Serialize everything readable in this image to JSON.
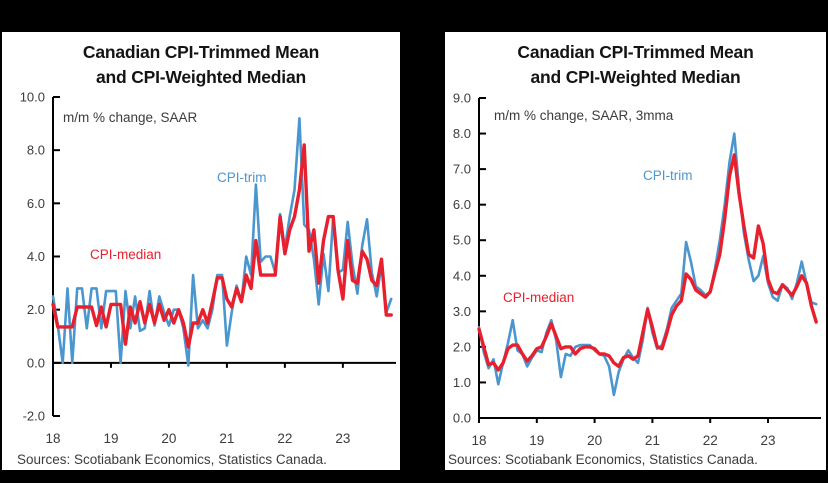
{
  "colors": {
    "cpi_trim_blue": "#4a96ce",
    "cpi_median_red": "#e8202e",
    "background": "#000000",
    "panel": "#ffffff",
    "axis": "#000000",
    "tick_label": "#3c3c3c",
    "title": "#141414"
  },
  "panels": [
    {
      "title_line1": "Canadian CPI-Trimmed Mean",
      "title_line2": "and CPI-Weighted Median",
      "annotation": "m/m % change, SAAR",
      "labels": {
        "trim": "CPI-trim",
        "median": "CPI-median"
      },
      "sources": "Sources: Scotiabank Economics, Statistics Canada."
    },
    {
      "title_line1": "Canadian CPI-Trimmed Mean",
      "title_line2": "and CPI-Weighted Median",
      "annotation": "m/m % change, SAAR, 3mma",
      "labels": {
        "trim": "CPI-trim",
        "median": "CPI-median"
      },
      "sources": "Sources: Scotiabank Economics, Statistics Canada."
    }
  ],
  "chart_data": [
    {
      "type": "line",
      "title": "Canadian CPI-Trimmed Mean and CPI-Weighted Median",
      "subtitle": "m/m % change, SAAR",
      "x_start": "2018-01",
      "x_frequency": "monthly",
      "xticklabels": [
        "18",
        "19",
        "20",
        "21",
        "22",
        "23"
      ],
      "ylim": [
        -2,
        10
      ],
      "ytick_step": 2,
      "yticklabels": [
        "-2.0",
        "0.0",
        "2.0",
        "4.0",
        "6.0",
        "8.0",
        "10.0"
      ],
      "grid": false,
      "series": [
        {
          "name": "CPI-trim",
          "color": "#4a96ce",
          "values": [
            2.5,
            1.4,
            0.0,
            2.8,
            0.0,
            2.8,
            2.8,
            1.3,
            2.8,
            2.8,
            1.3,
            2.7,
            2.7,
            2.7,
            0.0,
            2.7,
            1.3,
            2.5,
            1.2,
            1.3,
            2.7,
            1.4,
            2.5,
            1.9,
            1.4,
            2.0,
            2.0,
            1.3,
            -0.1,
            3.3,
            1.3,
            1.6,
            1.3,
            2.0,
            3.3,
            3.3,
            0.65,
            1.9,
            2.9,
            2.3,
            4.0,
            3.3,
            6.7,
            3.8,
            4.0,
            4.0,
            3.4,
            5.6,
            4.3,
            5.5,
            6.5,
            9.2,
            5.2,
            5.0,
            3.9,
            2.2,
            4.1,
            2.7,
            5.5,
            3.4,
            3.5,
            5.3,
            3.7,
            2.6,
            4.4,
            5.4,
            3.4,
            2.5,
            3.7,
            1.9,
            2.4
          ]
        },
        {
          "name": "CPI-median",
          "color": "#e8202e",
          "values": [
            2.2,
            1.35,
            1.35,
            1.35,
            1.35,
            2.1,
            2.1,
            2.1,
            2.1,
            1.4,
            2.1,
            1.35,
            2.2,
            2.2,
            2.2,
            0.7,
            2.1,
            1.5,
            2.3,
            1.5,
            2.2,
            1.5,
            2.2,
            1.6,
            2.0,
            1.5,
            2.0,
            1.5,
            0.6,
            1.5,
            1.5,
            2.0,
            1.5,
            2.3,
            3.2,
            3.2,
            2.4,
            2.1,
            2.8,
            2.3,
            3.3,
            2.8,
            4.6,
            3.3,
            3.3,
            3.3,
            3.3,
            5.5,
            4.1,
            5.0,
            5.5,
            6.5,
            8.2,
            4.2,
            5.0,
            3.0,
            4.6,
            5.5,
            5.5,
            3.5,
            2.4,
            4.6,
            3.1,
            3.0,
            4.2,
            3.9,
            3.1,
            2.9,
            3.9,
            1.8,
            1.8
          ]
        }
      ]
    },
    {
      "type": "line",
      "title": "Canadian CPI-Trimmed Mean and CPI-Weighted Median",
      "subtitle": "m/m % change, SAAR, 3mma",
      "x_start": "2018-01",
      "x_frequency": "monthly",
      "xticklabels": [
        "18",
        "19",
        "20",
        "21",
        "22",
        "23"
      ],
      "ylim": [
        0,
        9
      ],
      "ytick_step": 1,
      "yticklabels": [
        "0.0",
        "1.0",
        "2.0",
        "3.0",
        "4.0",
        "5.0",
        "6.0",
        "7.0",
        "8.0",
        "9.0"
      ],
      "grid": false,
      "series": [
        {
          "name": "CPI-trim",
          "color": "#4a96ce",
          "values": [
            2.55,
            1.85,
            1.4,
            1.65,
            0.95,
            1.55,
            2.1,
            2.75,
            1.9,
            1.8,
            1.45,
            1.7,
            1.9,
            1.85,
            2.4,
            2.75,
            2.2,
            1.15,
            1.8,
            1.75,
            2.0,
            2.05,
            2.05,
            2.05,
            1.9,
            1.8,
            1.75,
            1.45,
            0.65,
            1.3,
            1.65,
            1.9,
            1.7,
            1.55,
            2.2,
            3.1,
            2.4,
            1.95,
            2.05,
            2.5,
            3.1,
            3.3,
            3.5,
            4.95,
            4.4,
            3.7,
            3.6,
            3.45,
            3.55,
            4.2,
            5.0,
            6.0,
            7.2,
            8.0,
            6.4,
            5.2,
            4.45,
            3.85,
            4.0,
            4.55,
            3.8,
            3.4,
            3.3,
            3.75,
            3.65,
            3.35,
            3.8,
            4.4,
            3.8,
            3.25,
            3.2
          ]
        },
        {
          "name": "CPI-median",
          "color": "#e8202e",
          "values": [
            2.5,
            2.0,
            1.5,
            1.55,
            1.35,
            1.55,
            1.95,
            2.05,
            2.05,
            1.8,
            1.6,
            1.75,
            1.95,
            2.0,
            2.3,
            2.65,
            2.3,
            1.95,
            2.0,
            2.0,
            1.8,
            1.95,
            2.0,
            2.0,
            1.95,
            1.8,
            1.8,
            1.75,
            1.55,
            1.45,
            1.7,
            1.75,
            1.65,
            1.75,
            2.4,
            3.05,
            2.55,
            2.0,
            1.95,
            2.4,
            2.9,
            3.15,
            3.3,
            4.05,
            3.9,
            3.6,
            3.5,
            3.4,
            3.55,
            4.1,
            4.6,
            5.6,
            6.8,
            7.4,
            6.3,
            5.4,
            4.6,
            4.5,
            5.4,
            4.9,
            3.9,
            3.55,
            3.5,
            3.75,
            3.6,
            3.45,
            3.7,
            4.0,
            3.8,
            3.15,
            2.7
          ]
        }
      ]
    }
  ]
}
